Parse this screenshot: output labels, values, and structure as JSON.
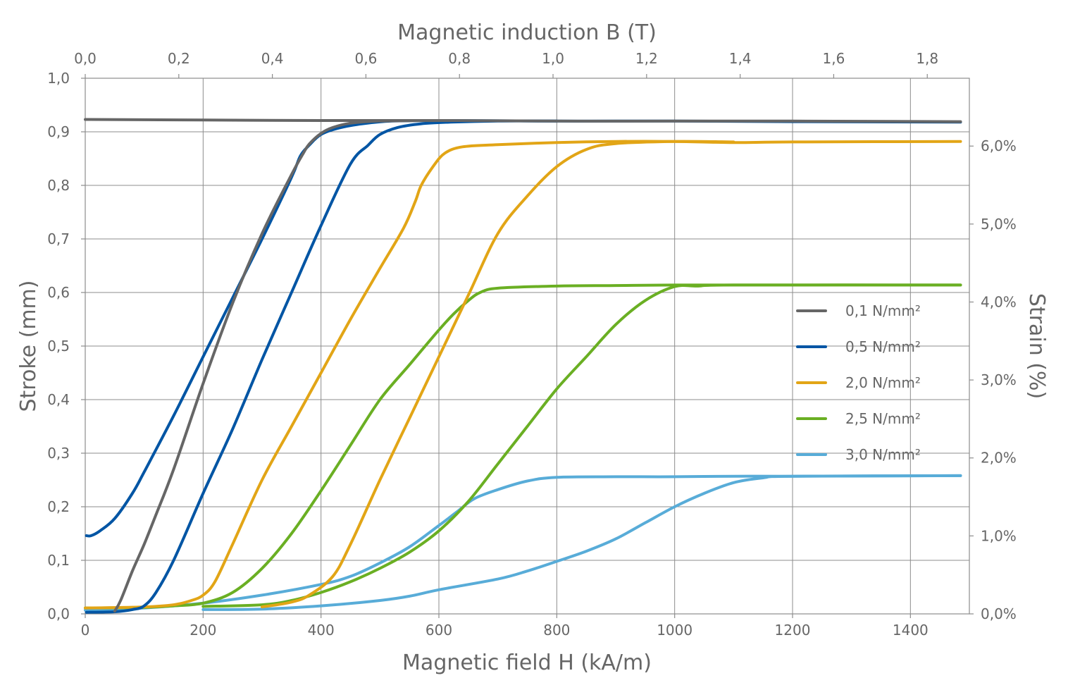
{
  "chart_data": {
    "type": "line",
    "title": "",
    "xlabel": "Magnetic field H (kA/m)",
    "ylabel": "Stroke (mm)",
    "x2label": "Magnetic induction B (T)",
    "y2label": "Strain (%)",
    "xlim": [
      0,
      1500
    ],
    "ylim": [
      0,
      1.0
    ],
    "x2lim": [
      0,
      1.89
    ],
    "y2lim": [
      0,
      6.87
    ],
    "xticks": [
      0,
      200,
      400,
      600,
      800,
      1000,
      1200,
      1400
    ],
    "xtick_labels": [
      "0",
      "200",
      "400",
      "600",
      "800",
      "1000",
      "1200",
      "1400"
    ],
    "yticks": [
      0,
      0.1,
      0.2,
      0.3,
      0.4,
      0.5,
      0.6,
      0.7,
      0.8,
      0.9,
      1.0
    ],
    "ytick_labels": [
      "0,0",
      "0,1",
      "0,2",
      "0,3",
      "0,4",
      "0,5",
      "0,6",
      "0,7",
      "0,8",
      "0,9",
      "1,0"
    ],
    "x2ticks": [
      0,
      0.2,
      0.4,
      0.6,
      0.8,
      1.0,
      1.2,
      1.4,
      1.6,
      1.8
    ],
    "x2tick_labels": [
      "0,0",
      "0,2",
      "0,4",
      "0,6",
      "0,8",
      "1,0",
      "1,2",
      "1,4",
      "1,6",
      "1,8"
    ],
    "y2ticks": [
      0,
      1,
      2,
      3,
      4,
      5,
      6
    ],
    "y2tick_labels": [
      "0,0%",
      "1,0%",
      "2,0%",
      "3,0%",
      "4,0%",
      "5,0%",
      "6,0%"
    ],
    "grid": true,
    "legend_position": "right",
    "series": [
      {
        "name": "0,1 N/mm²",
        "color": "#666666",
        "curves": [
          [
            [
              0,
              0.923
            ],
            [
              200,
              0.922
            ],
            [
              400,
              0.921
            ],
            [
              600,
              0.921
            ],
            [
              800,
              0.92
            ],
            [
              1000,
              0.92
            ],
            [
              1200,
              0.92
            ],
            [
              1485,
              0.919
            ]
          ],
          [
            [
              50,
              0.005
            ],
            [
              60,
              0.025
            ],
            [
              80,
              0.08
            ],
            [
              100,
              0.13
            ],
            [
              120,
              0.185
            ],
            [
              150,
              0.27
            ],
            [
              200,
              0.43
            ],
            [
              250,
              0.58
            ],
            [
              300,
              0.71
            ],
            [
              350,
              0.82
            ],
            [
              370,
              0.86
            ],
            [
              380,
              0.877
            ],
            [
              400,
              0.897
            ],
            [
              420,
              0.908
            ],
            [
              450,
              0.916
            ],
            [
              500,
              0.92
            ],
            [
              600,
              0.921
            ]
          ]
        ]
      },
      {
        "name": "0,5 N/mm²",
        "color": "#0055a4",
        "curves": [
          [
            [
              2,
              0.146
            ],
            [
              10,
              0.146
            ],
            [
              25,
              0.155
            ],
            [
              50,
              0.178
            ],
            [
              80,
              0.225
            ],
            [
              100,
              0.265
            ],
            [
              150,
              0.37
            ],
            [
              200,
              0.48
            ],
            [
              250,
              0.59
            ],
            [
              300,
              0.7
            ],
            [
              350,
              0.815
            ],
            [
              365,
              0.855
            ],
            [
              380,
              0.875
            ],
            [
              400,
              0.895
            ],
            [
              430,
              0.907
            ],
            [
              470,
              0.915
            ],
            [
              520,
              0.92
            ],
            [
              600,
              0.921
            ],
            [
              800,
              0.92
            ],
            [
              1000,
              0.92
            ],
            [
              1200,
              0.919
            ],
            [
              1485,
              0.918
            ]
          ],
          [
            [
              2,
              0.003
            ],
            [
              50,
              0.004
            ],
            [
              80,
              0.008
            ],
            [
              100,
              0.015
            ],
            [
              120,
              0.04
            ],
            [
              150,
              0.1
            ],
            [
              200,
              0.225
            ],
            [
              250,
              0.345
            ],
            [
              300,
              0.475
            ],
            [
              350,
              0.6
            ],
            [
              400,
              0.725
            ],
            [
              450,
              0.84
            ],
            [
              480,
              0.875
            ],
            [
              500,
              0.895
            ],
            [
              530,
              0.908
            ],
            [
              570,
              0.915
            ],
            [
              620,
              0.918
            ],
            [
              700,
              0.92
            ],
            [
              800,
              0.92
            ]
          ]
        ]
      },
      {
        "name": "2,0 N/mm²",
        "color": "#e2a516",
        "curves": [
          [
            [
              0,
              0.011
            ],
            [
              100,
              0.013
            ],
            [
              150,
              0.017
            ],
            [
              180,
              0.025
            ],
            [
              200,
              0.035
            ],
            [
              220,
              0.06
            ],
            [
              250,
              0.13
            ],
            [
              300,
              0.25
            ],
            [
              350,
              0.35
            ],
            [
              400,
              0.45
            ],
            [
              450,
              0.55
            ],
            [
              500,
              0.645
            ],
            [
              540,
              0.72
            ],
            [
              560,
              0.77
            ],
            [
              570,
              0.8
            ],
            [
              590,
              0.835
            ],
            [
              610,
              0.86
            ],
            [
              640,
              0.872
            ],
            [
              700,
              0.876
            ],
            [
              800,
              0.88
            ],
            [
              900,
              0.882
            ],
            [
              1000,
              0.882
            ],
            [
              1100,
              0.88
            ],
            [
              1200,
              0.881
            ],
            [
              1485,
              0.882
            ]
          ],
          [
            [
              300,
              0.013
            ],
            [
              350,
              0.022
            ],
            [
              380,
              0.035
            ],
            [
              420,
              0.07
            ],
            [
              450,
              0.13
            ],
            [
              500,
              0.25
            ],
            [
              550,
              0.365
            ],
            [
              600,
              0.48
            ],
            [
              650,
              0.595
            ],
            [
              700,
              0.71
            ],
            [
              750,
              0.78
            ],
            [
              800,
              0.835
            ],
            [
              850,
              0.867
            ],
            [
              900,
              0.878
            ],
            [
              1000,
              0.882
            ],
            [
              1100,
              0.881
            ]
          ]
        ]
      },
      {
        "name": "2,5 N/mm²",
        "color": "#6aaf23",
        "curves": [
          [
            [
              0,
              0.011
            ],
            [
              100,
              0.012
            ],
            [
              150,
              0.015
            ],
            [
              200,
              0.02
            ],
            [
              250,
              0.04
            ],
            [
              300,
              0.085
            ],
            [
              350,
              0.15
            ],
            [
              400,
              0.23
            ],
            [
              450,
              0.315
            ],
            [
              500,
              0.4
            ],
            [
              550,
              0.465
            ],
            [
              600,
              0.53
            ],
            [
              625,
              0.56
            ],
            [
              650,
              0.585
            ],
            [
              670,
              0.6
            ],
            [
              700,
              0.608
            ],
            [
              800,
              0.612
            ],
            [
              900,
              0.613
            ],
            [
              1000,
              0.614
            ],
            [
              1200,
              0.614
            ],
            [
              1485,
              0.614
            ]
          ],
          [
            [
              200,
              0.014
            ],
            [
              300,
              0.017
            ],
            [
              350,
              0.025
            ],
            [
              400,
              0.04
            ],
            [
              450,
              0.06
            ],
            [
              500,
              0.085
            ],
            [
              550,
              0.115
            ],
            [
              600,
              0.155
            ],
            [
              650,
              0.21
            ],
            [
              700,
              0.28
            ],
            [
              750,
              0.35
            ],
            [
              800,
              0.42
            ],
            [
              850,
              0.48
            ],
            [
              900,
              0.54
            ],
            [
              950,
              0.585
            ],
            [
              1000,
              0.611
            ],
            [
              1040,
              0.612
            ],
            [
              1100,
              0.614
            ],
            [
              1485,
              0.614
            ]
          ]
        ]
      },
      {
        "name": "3,0 N/mm²",
        "color": "#58acd8",
        "curves": [
          [
            [
              0,
              0.007
            ],
            [
              100,
              0.011
            ],
            [
              200,
              0.02
            ],
            [
              300,
              0.035
            ],
            [
              400,
              0.055
            ],
            [
              450,
              0.07
            ],
            [
              500,
              0.095
            ],
            [
              550,
              0.125
            ],
            [
              600,
              0.165
            ],
            [
              630,
              0.19
            ],
            [
              660,
              0.215
            ],
            [
              700,
              0.232
            ],
            [
              750,
              0.248
            ],
            [
              800,
              0.255
            ],
            [
              900,
              0.256
            ],
            [
              1000,
              0.256
            ],
            [
              1100,
              0.257
            ],
            [
              1200,
              0.257
            ],
            [
              1485,
              0.258
            ]
          ],
          [
            [
              200,
              0.008
            ],
            [
              300,
              0.009
            ],
            [
              400,
              0.015
            ],
            [
              500,
              0.025
            ],
            [
              550,
              0.033
            ],
            [
              600,
              0.045
            ],
            [
              700,
              0.065
            ],
            [
              750,
              0.08
            ],
            [
              800,
              0.098
            ],
            [
              850,
              0.117
            ],
            [
              900,
              0.14
            ],
            [
              950,
              0.17
            ],
            [
              1000,
              0.2
            ],
            [
              1050,
              0.225
            ],
            [
              1100,
              0.245
            ],
            [
              1150,
              0.254
            ],
            [
              1200,
              0.257
            ],
            [
              1485,
              0.258
            ]
          ]
        ]
      }
    ]
  }
}
